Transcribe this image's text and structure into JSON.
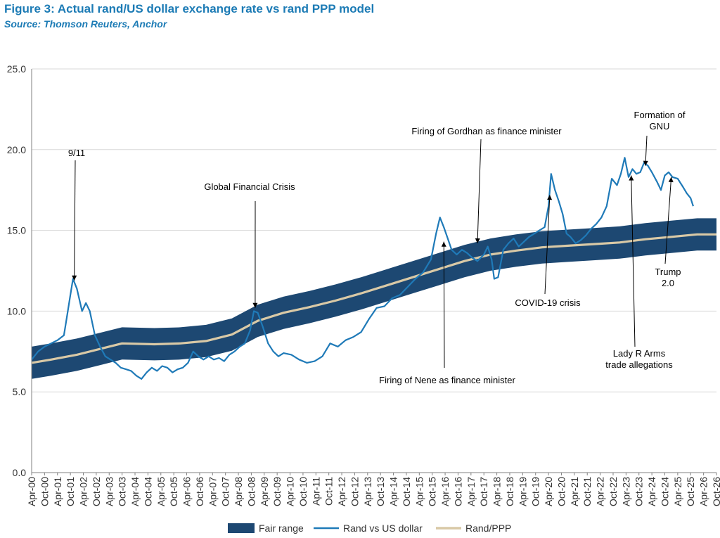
{
  "title": "Figure 3: Actual rand/US dollar exchange rate vs rand PPP model",
  "source": "Source: Thomson Reuters, Anchor",
  "colors": {
    "fair_range": "#1d4872",
    "rand_usd": "#1f7ab8",
    "ppp": "#d9c9a6",
    "grid": "#d9d9d9",
    "axis": "#808080",
    "title": "#1c7bb5"
  },
  "chart_data": {
    "type": "line",
    "ylim": [
      0,
      25
    ],
    "yticks": [
      0,
      5,
      10,
      15,
      20,
      25
    ],
    "ytick_labels": [
      "0.0",
      "5.0",
      "10.0",
      "15.0",
      "20.0",
      "25.0"
    ],
    "x_start": 2000.25,
    "x_end": 2026.75,
    "xtick_labels": [
      "Apr-00",
      "Oct-00",
      "Apr-01",
      "Oct-01",
      "Apr-02",
      "Oct-02",
      "Apr-03",
      "Oct-03",
      "Apr-04",
      "Oct-04",
      "Apr-05",
      "Oct-05",
      "Apr-06",
      "Oct-06",
      "Apr-07",
      "Oct-07",
      "Apr-08",
      "Oct-08",
      "Apr-09",
      "Oct-09",
      "Apr-10",
      "Oct-10",
      "Apr-11",
      "Oct-11",
      "Apr-12",
      "Oct-12",
      "Apr-13",
      "Oct-13",
      "Apr-14",
      "Oct-14",
      "Apr-15",
      "Oct-15",
      "Apr-16",
      "Oct-16",
      "Apr-17",
      "Oct-17",
      "Apr-18",
      "Oct-18",
      "Apr-19",
      "Oct-19",
      "Apr-20",
      "Oct-20",
      "Apr-21",
      "Oct-21",
      "Apr-22",
      "Oct-22",
      "Apr-23",
      "Oct-23",
      "Apr-24",
      "Oct-24",
      "Apr-25",
      "Oct-25",
      "Apr-26",
      "Oct-26"
    ],
    "legend": [
      "Fair range",
      "Rand vs US dollar",
      "Rand/PPP"
    ],
    "series": [
      {
        "name": "Rand/PPP",
        "x": [
          2000.25,
          2001.0,
          2002.0,
          2003.0,
          2003.75,
          2005.0,
          2006.0,
          2007.0,
          2008.0,
          2009.0,
          2010.0,
          2011.0,
          2012.0,
          2013.0,
          2014.0,
          2015.0,
          2016.0,
          2017.0,
          2018.0,
          2019.0,
          2020.0,
          2021.0,
          2022.0,
          2023.0,
          2024.0,
          2025.0,
          2026.0,
          2026.75
        ],
        "values": [
          6.8,
          7.0,
          7.3,
          7.7,
          8.0,
          7.95,
          8.0,
          8.15,
          8.55,
          9.4,
          9.9,
          10.25,
          10.65,
          11.1,
          11.6,
          12.1,
          12.6,
          13.1,
          13.5,
          13.75,
          13.95,
          14.05,
          14.15,
          14.25,
          14.45,
          14.6,
          14.75,
          14.75
        ]
      },
      {
        "name": "Fair range",
        "type": "band",
        "x": [
          2000.25,
          2001.0,
          2002.0,
          2003.0,
          2003.75,
          2005.0,
          2006.0,
          2007.0,
          2008.0,
          2009.0,
          2010.0,
          2011.0,
          2012.0,
          2013.0,
          2014.0,
          2015.0,
          2016.0,
          2017.0,
          2018.0,
          2019.0,
          2020.0,
          2021.0,
          2022.0,
          2023.0,
          2024.0,
          2025.0,
          2026.0,
          2026.75
        ],
        "upper": [
          7.8,
          8.0,
          8.3,
          8.7,
          9.0,
          8.95,
          9.0,
          9.15,
          9.55,
          10.4,
          10.9,
          11.25,
          11.65,
          12.1,
          12.6,
          13.1,
          13.6,
          14.1,
          14.5,
          14.75,
          14.95,
          15.05,
          15.15,
          15.25,
          15.45,
          15.6,
          15.75,
          15.75
        ],
        "lower": [
          5.8,
          6.0,
          6.3,
          6.7,
          7.0,
          6.95,
          7.0,
          7.15,
          7.55,
          8.4,
          8.9,
          9.25,
          9.65,
          10.1,
          10.6,
          11.1,
          11.6,
          12.1,
          12.5,
          12.75,
          12.95,
          13.05,
          13.15,
          13.25,
          13.45,
          13.6,
          13.75,
          13.75
        ]
      },
      {
        "name": "Rand vs US dollar",
        "x": [
          2000.25,
          2000.5,
          2000.75,
          2001.0,
          2001.25,
          2001.5,
          2001.6,
          2001.75,
          2001.85,
          2002.0,
          2002.2,
          2002.35,
          2002.5,
          2002.7,
          2002.9,
          2003.1,
          2003.3,
          2003.5,
          2003.7,
          2003.9,
          2004.1,
          2004.3,
          2004.5,
          2004.7,
          2004.9,
          2005.1,
          2005.3,
          2005.5,
          2005.7,
          2005.9,
          2006.1,
          2006.3,
          2006.5,
          2006.7,
          2006.9,
          2007.1,
          2007.3,
          2007.5,
          2007.7,
          2007.9,
          2008.1,
          2008.3,
          2008.5,
          2008.7,
          2008.85,
          2009.0,
          2009.2,
          2009.4,
          2009.6,
          2009.8,
          2010.0,
          2010.3,
          2010.6,
          2010.9,
          2011.2,
          2011.5,
          2011.8,
          2012.1,
          2012.4,
          2012.7,
          2013.0,
          2013.3,
          2013.6,
          2013.9,
          2014.2,
          2014.5,
          2014.8,
          2015.1,
          2015.4,
          2015.7,
          2015.9,
          2016.05,
          2016.2,
          2016.35,
          2016.5,
          2016.7,
          2016.9,
          2017.1,
          2017.3,
          2017.5,
          2017.75,
          2017.9,
          2018.05,
          2018.15,
          2018.3,
          2018.5,
          2018.7,
          2018.9,
          2019.1,
          2019.3,
          2019.5,
          2019.7,
          2019.9,
          2020.1,
          2020.25,
          2020.35,
          2020.5,
          2020.65,
          2020.8,
          2020.95,
          2021.1,
          2021.3,
          2021.5,
          2021.7,
          2021.9,
          2022.1,
          2022.3,
          2022.5,
          2022.7,
          2022.9,
          2023.05,
          2023.2,
          2023.35,
          2023.5,
          2023.65,
          2023.8,
          2023.95,
          2024.1,
          2024.25,
          2024.45,
          2024.6,
          2024.75,
          2024.9,
          2025.05,
          2025.25,
          2025.45,
          2025.6,
          2025.75,
          2025.85
        ],
        "values": [
          7.0,
          7.5,
          7.8,
          8.0,
          8.2,
          8.5,
          9.5,
          11.0,
          12.0,
          11.4,
          10.0,
          10.5,
          10.0,
          8.5,
          7.8,
          7.2,
          7.0,
          6.8,
          6.5,
          6.4,
          6.3,
          6.0,
          5.8,
          6.2,
          6.5,
          6.3,
          6.6,
          6.5,
          6.2,
          6.4,
          6.5,
          6.8,
          7.5,
          7.2,
          7.0,
          7.2,
          7.0,
          7.1,
          6.9,
          7.3,
          7.5,
          7.8,
          8.0,
          8.8,
          10.0,
          9.9,
          9.0,
          8.0,
          7.5,
          7.2,
          7.4,
          7.3,
          7.0,
          6.8,
          6.9,
          7.2,
          8.0,
          7.8,
          8.2,
          8.4,
          8.7,
          9.5,
          10.2,
          10.3,
          10.8,
          11.0,
          11.5,
          12.0,
          12.4,
          13.2,
          14.8,
          15.8,
          15.2,
          14.5,
          13.8,
          13.5,
          13.8,
          13.6,
          13.3,
          13.1,
          13.5,
          14.0,
          13.2,
          12.0,
          12.1,
          13.8,
          14.2,
          14.5,
          14.0,
          14.3,
          14.6,
          14.8,
          15.0,
          15.2,
          16.5,
          18.5,
          17.5,
          16.8,
          16.0,
          14.8,
          14.6,
          14.2,
          14.4,
          14.7,
          15.1,
          15.4,
          15.8,
          16.5,
          18.2,
          17.8,
          18.5,
          19.5,
          18.3,
          18.8,
          18.5,
          18.6,
          19.2,
          19.0,
          18.6,
          18.0,
          17.5,
          18.4,
          18.6,
          18.3,
          18.2,
          17.7,
          17.3,
          17.0,
          16.5
        ]
      }
    ],
    "annotations": [
      {
        "text": "9/11",
        "lines": [
          "9/11"
        ],
        "x": 2001.9,
        "y": 11.9
      },
      {
        "text": "Global Financial Crisis",
        "lines": [
          "Global Financial Crisis"
        ],
        "x": 2008.9,
        "y": 10.2
      },
      {
        "text": "Firing of Gordhan as finance minister",
        "lines": [
          "Firing of Gordhan as finance minister"
        ],
        "x": 2017.5,
        "y": 14.2
      },
      {
        "text": "Firing of Nene as finance minister",
        "lines": [
          "Firing of Nene as finance minister"
        ],
        "x": 2016.2,
        "y": 14.3
      },
      {
        "text": "COVID-19 crisis",
        "lines": [
          "COVID-19 crisis"
        ],
        "x": 2020.3,
        "y": 17.2
      },
      {
        "text": "Formation of GNU",
        "lines": [
          "Formation of",
          "GNU"
        ],
        "x": 2024.0,
        "y": 19.0
      },
      {
        "text": "Lady R Arms trade allegations",
        "lines": [
          "Lady R Arms",
          "trade allegations"
        ],
        "x": 2023.45,
        "y": 18.4
      },
      {
        "text": "Trump 2.0",
        "lines": [
          "Trump",
          "2.0"
        ],
        "x": 2025.0,
        "y": 18.3
      }
    ]
  }
}
